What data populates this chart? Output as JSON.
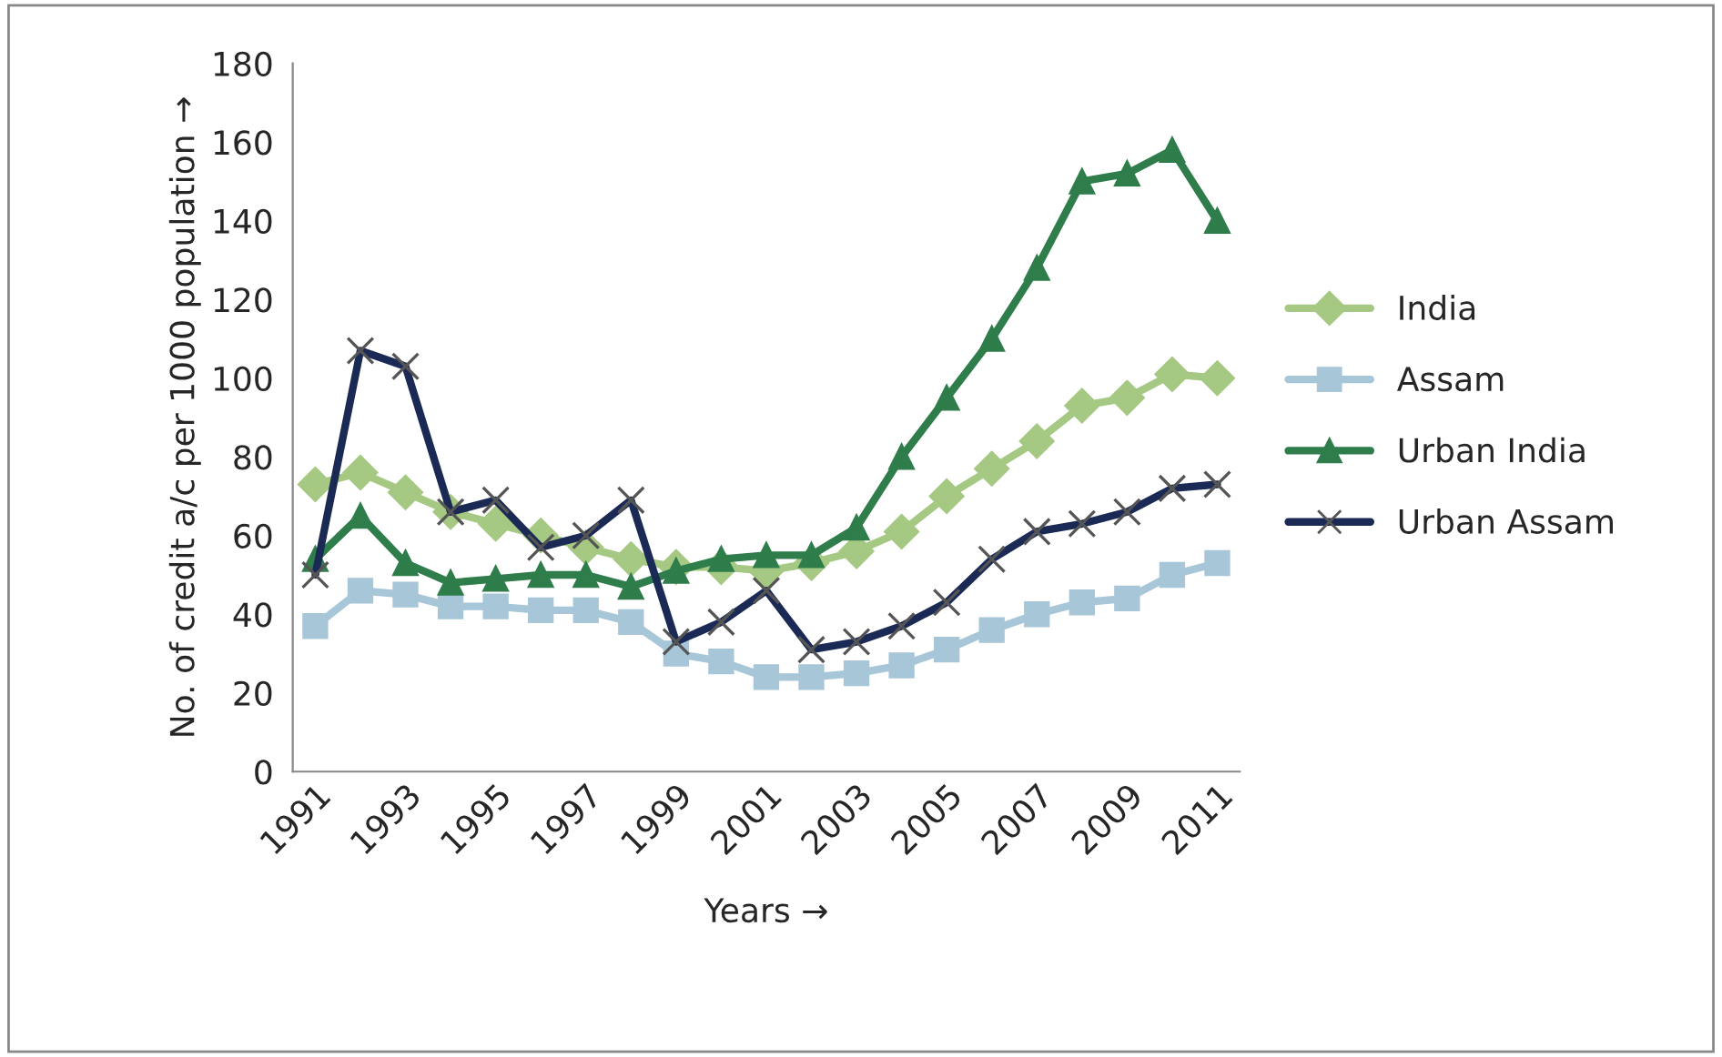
{
  "chart_data": {
    "type": "line",
    "xlabel": "Years →",
    "ylabel": "No. of credit a/c per 1000 population →",
    "categories": [
      "1991",
      null,
      "1993",
      null,
      "1995",
      null,
      "1997",
      null,
      "1999",
      null,
      "2001",
      null,
      "2003",
      null,
      "2005",
      null,
      "2007",
      null,
      "2009",
      null,
      "2011"
    ],
    "ylim": [
      0,
      180
    ],
    "yticks": [
      0,
      20,
      40,
      60,
      80,
      100,
      120,
      140,
      160,
      180
    ],
    "grid": false,
    "legend": "right",
    "line_style": "solid",
    "series": [
      {
        "name": "India",
        "color": "#a5c882",
        "marker": "diamond",
        "values": [
          73,
          76,
          71,
          66,
          63,
          60,
          57,
          54,
          52,
          52,
          51,
          53,
          56,
          61,
          70,
          77,
          84,
          93,
          95,
          101,
          100
        ]
      },
      {
        "name": "Assam",
        "color": "#a7c6d8",
        "marker": "square",
        "values": [
          37,
          46,
          45,
          42,
          42,
          41,
          41,
          38,
          30,
          28,
          24,
          24,
          25,
          27,
          31,
          36,
          40,
          43,
          44,
          50,
          53
        ]
      },
      {
        "name": "Urban India",
        "color": "#2e7d4a",
        "marker": "triangle",
        "values": [
          54,
          65,
          53,
          48,
          49,
          50,
          50,
          47,
          51,
          54,
          55,
          55,
          62,
          80,
          95,
          110,
          128,
          150,
          152,
          158,
          140
        ]
      },
      {
        "name": "Urban Assam",
        "color": "#1b2a55",
        "marker": "cross",
        "values": [
          50,
          107,
          103,
          66,
          69,
          57,
          60,
          69,
          33,
          38,
          46,
          31,
          33,
          37,
          43,
          54,
          61,
          63,
          66,
          72,
          73
        ]
      }
    ]
  }
}
